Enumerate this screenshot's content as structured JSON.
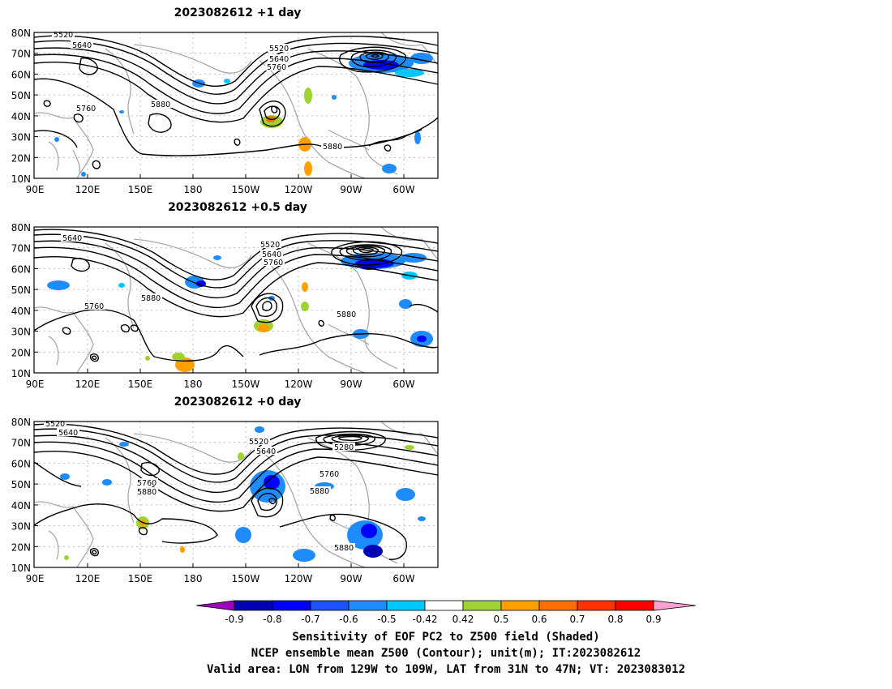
{
  "panels": [
    {
      "title": "2023082612  +1 day",
      "contour_labels": [
        "5520",
        "5640",
        "5520",
        "5640",
        "5760",
        "5760",
        "5880",
        "5880"
      ]
    },
    {
      "title": "2023082612  +0.5 day",
      "contour_labels": [
        "5640",
        "5520",
        "5640",
        "5760",
        "5760",
        "5880",
        "5880"
      ]
    },
    {
      "title": "2023082612  +0 day",
      "contour_labels": [
        "5520",
        "5640",
        "5520",
        "5640",
        "5280",
        "5760",
        "5880",
        "5760",
        "5880",
        "5880"
      ]
    }
  ],
  "axes": {
    "lat_labels": [
      "80N",
      "70N",
      "60N",
      "50N",
      "40N",
      "30N",
      "20N",
      "10N"
    ],
    "lon_labels": [
      "90E",
      "120E",
      "150E",
      "180",
      "150W",
      "120W",
      "90W",
      "60W"
    ]
  },
  "colorbar": {
    "ticks": [
      "-0.9",
      "-0.8",
      "-0.7",
      "-0.6",
      "-0.5",
      "-0.42",
      "0.42",
      "0.5",
      "0.6",
      "0.7",
      "0.8",
      "0.9"
    ],
    "colors": [
      "#a000c0",
      "#0000b4",
      "#0000ff",
      "#1e50ff",
      "#1e8cff",
      "#00c8ff",
      "#ffffff",
      "#a0d232",
      "#ffa000",
      "#ff6e00",
      "#ff3200",
      "#ff0000",
      "#ffa0d2"
    ]
  },
  "caption": {
    "line1": "Sensitivity of EOF PC2 to Z500 field (Shaded)",
    "line2": "NCEP ensemble mean Z500 (Contour); unit(m); IT:2023082612",
    "line3": "Valid area: LON from 129W to 109W, LAT from 31N to 47N; VT: 2023083012"
  },
  "colors": {
    "contour": "#000000",
    "coastline": "#a8a8a8",
    "grid": "#b0b0b0"
  }
}
